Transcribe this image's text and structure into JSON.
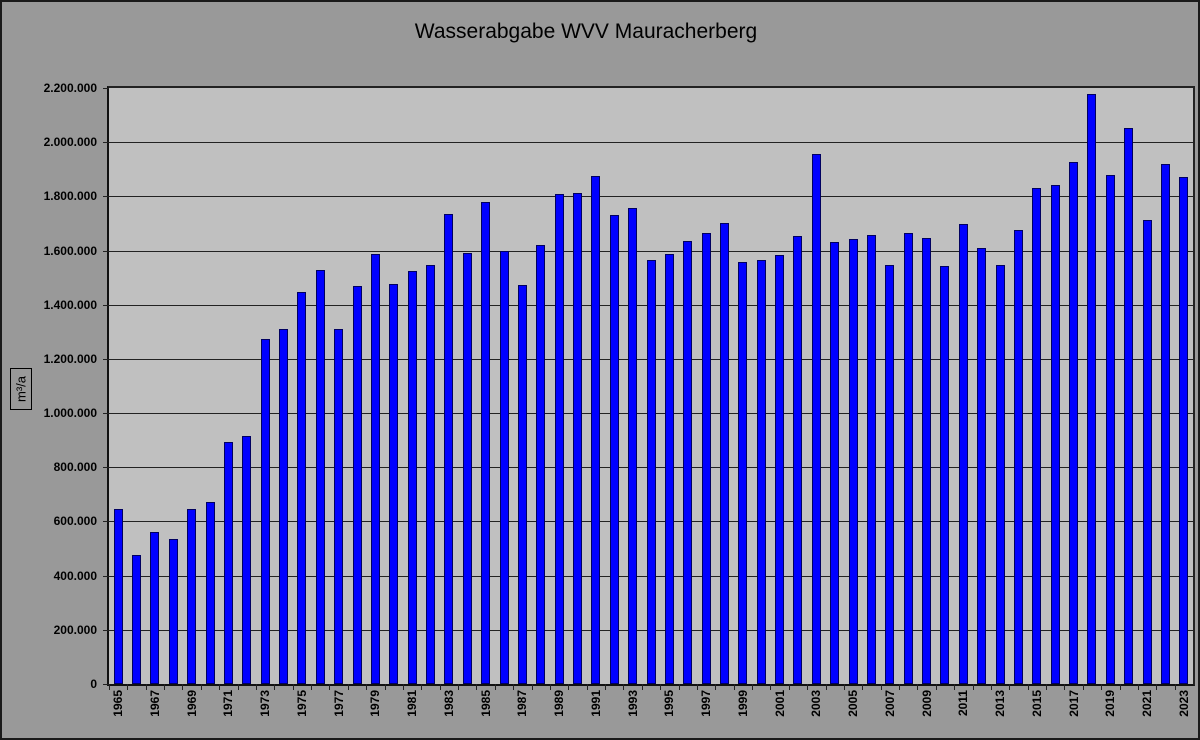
{
  "title": "Wasserabgabe WVV Mauracherberg",
  "y_axis_title": "m³/a",
  "colors": {
    "bar": "#0000ff",
    "bar_border": "#000060",
    "plot_bg": "#c0c0c0",
    "frame_bg": "#999999"
  },
  "y_ticks": [
    "0",
    "200.000",
    "400.000",
    "600.000",
    "800.000",
    "1.000.000",
    "1.200.000",
    "1.400.000",
    "1.600.000",
    "1.800.000",
    "2.000.000",
    "2.200.000"
  ],
  "chart_data": {
    "type": "bar",
    "title": "Wasserabgabe WVV Mauracherberg",
    "xlabel": "",
    "ylabel": "m³/a",
    "ylim": [
      0,
      2200000
    ],
    "y_tick_step": 200000,
    "grid": true,
    "legend": null,
    "categories": [
      "1965",
      "1966",
      "1967",
      "1968",
      "1969",
      "1970",
      "1971",
      "1972",
      "1973",
      "1974",
      "1975",
      "1976",
      "1977",
      "1978",
      "1979",
      "1980",
      "1981",
      "1982",
      "1983",
      "1984",
      "1985",
      "1986",
      "1987",
      "1988",
      "1989",
      "1990",
      "1991",
      "1992",
      "1993",
      "1994",
      "1995",
      "1996",
      "1997",
      "1998",
      "1999",
      "2000",
      "2001",
      "2002",
      "2003",
      "2004",
      "2005",
      "2006",
      "2007",
      "2008",
      "2009",
      "2010",
      "2011",
      "2012",
      "2013",
      "2014",
      "2015",
      "2016",
      "2017",
      "2018",
      "2019",
      "2020",
      "2021",
      "2022",
      "2023"
    ],
    "x_tick_labels_shown": [
      "1965",
      "1967",
      "1969",
      "1971",
      "1973",
      "1975",
      "1977",
      "1979",
      "1981",
      "1983",
      "1985",
      "1987",
      "1989",
      "1991",
      "1993",
      "1995",
      "1997",
      "1999",
      "2001",
      "2003",
      "2005",
      "2007",
      "2009",
      "2011",
      "2013",
      "2015",
      "2017",
      "2019",
      "2021",
      "2023"
    ],
    "values": [
      646000,
      476000,
      561000,
      535000,
      646000,
      672000,
      893000,
      915000,
      1273000,
      1310000,
      1447000,
      1528000,
      1310000,
      1470000,
      1587000,
      1477000,
      1525000,
      1547000,
      1735000,
      1592000,
      1779000,
      1598000,
      1473000,
      1620000,
      1808000,
      1812000,
      1875000,
      1731000,
      1757000,
      1565000,
      1589000,
      1636000,
      1665000,
      1702000,
      1558000,
      1565000,
      1582000,
      1654000,
      1955000,
      1632000,
      1643000,
      1657000,
      1547000,
      1665000,
      1646000,
      1543000,
      1698000,
      1609000,
      1547000,
      1676000,
      1831000,
      1842000,
      1926000,
      2178000,
      1879000,
      2052000,
      1713000,
      1920000,
      1871000
    ]
  }
}
